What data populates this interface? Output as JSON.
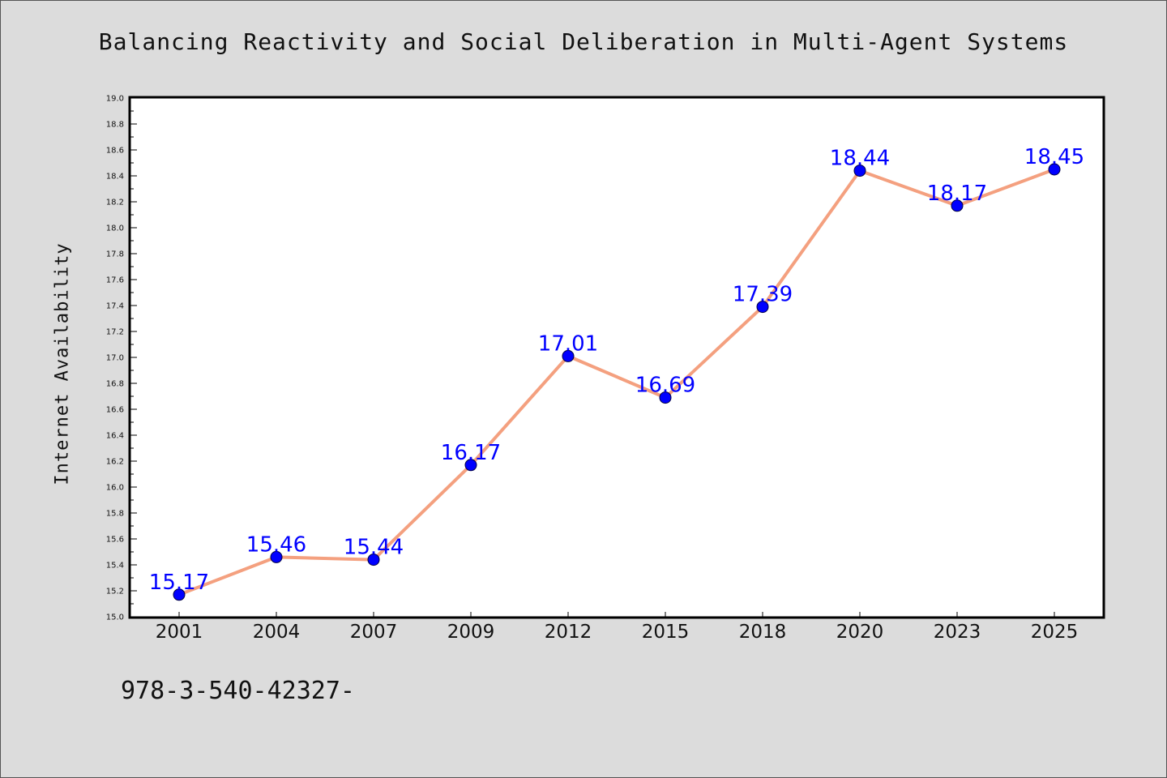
{
  "chart_data": {
    "type": "line",
    "title": "Balancing Reactivity and Social Deliberation in Multi-Agent Systems",
    "xlabel": "",
    "ylabel": "Internet Availability",
    "categories": [
      "2001",
      "2004",
      "2007",
      "2009",
      "2012",
      "2015",
      "2018",
      "2020",
      "2023",
      "2025"
    ],
    "values": [
      15.17,
      15.46,
      15.44,
      16.17,
      17.01,
      16.69,
      17.39,
      18.44,
      18.17,
      18.45
    ],
    "data_labels": [
      "15.17",
      "15.46",
      "15.44",
      "16.17",
      "17.01",
      "16.69",
      "17.39",
      "18.44",
      "18.17",
      "18.45"
    ],
    "ylim": [
      15.0,
      19.0
    ],
    "ytick_step": 0.2,
    "grid": false,
    "legend": "none",
    "line_color": "#f4a07f",
    "marker_color": "#0000ff",
    "label_color": "#0000ff"
  },
  "footer": {
    "text": "978-3-540-42327-"
  },
  "colors": {
    "background": "#dcdcdc",
    "plot_background": "#ffffff",
    "axis": "#000000"
  }
}
